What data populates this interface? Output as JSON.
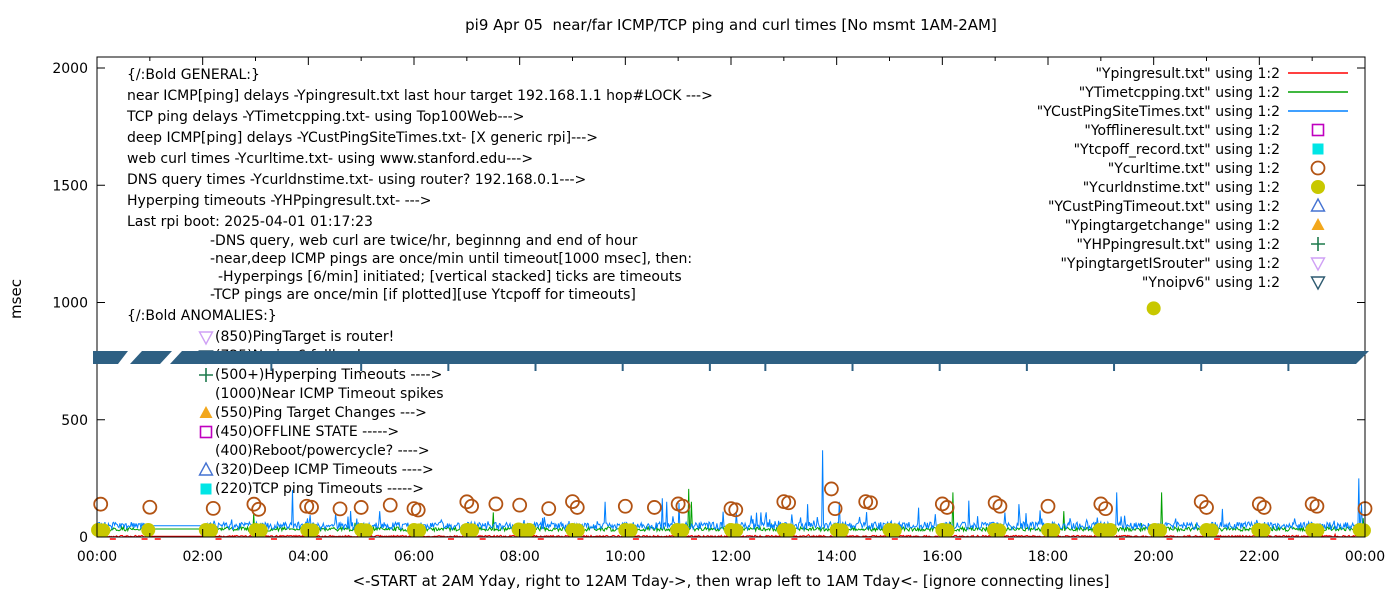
{
  "chart_data": {
    "type": "line",
    "title": "pi9 Apr 05  near/far ICMP/TCP ping and curl times [No msmt 1AM-2AM]",
    "xlabel": "<-START at 2AM Yday, right to 12AM Tday->, then wrap left to 1AM Tday<- [ignore connecting lines]",
    "ylabel": "msec",
    "ylim": [
      0,
      2000
    ],
    "yticks": [
      0,
      500,
      1000,
      1500,
      2000
    ],
    "xlim_hours": [
      0,
      24
    ],
    "minor_xtick_every_hours": 1,
    "grid": false,
    "legend_position": "top-right-inside",
    "xticks": [
      {
        "h": 0,
        "label": "00:00"
      },
      {
        "h": 2,
        "label": "02:00"
      },
      {
        "h": 4,
        "label": "04:00"
      },
      {
        "h": 6,
        "label": "06:00"
      },
      {
        "h": 8,
        "label": "08:00"
      },
      {
        "h": 10,
        "label": "10:00"
      },
      {
        "h": 12,
        "label": "12:00"
      },
      {
        "h": 14,
        "label": "14:00"
      },
      {
        "h": 16,
        "label": "16:00"
      },
      {
        "h": 18,
        "label": "18:00"
      },
      {
        "h": 20,
        "label": "20:00"
      },
      {
        "h": 22,
        "label": "22:00"
      },
      {
        "h": 24,
        "label": "00:00"
      }
    ],
    "line_series": [
      {
        "name": "Ypingresult.txt",
        "color": "#ff0000",
        "base": 3,
        "noise": 4,
        "spike_p": 0.004,
        "spike_amp": 8,
        "gap_flat": [
          1.0,
          2.08
        ],
        "spikes": []
      },
      {
        "name": "YTimetcpping.txt",
        "color": "#00a000",
        "base": 34,
        "noise": 9,
        "spike_p": 0.012,
        "spike_amp": 28,
        "gap_flat": [
          1.0,
          2.08
        ],
        "spikes": [
          [
            2.97,
            100
          ],
          [
            7.5,
            105
          ],
          [
            11.2,
            205
          ],
          [
            11.25,
            150
          ],
          [
            16.2,
            190
          ],
          [
            18.3,
            110
          ],
          [
            20.15,
            190
          ],
          [
            23.97,
            80
          ]
        ]
      },
      {
        "name": "YCustPingSiteTimes.txt",
        "color": "#0080ff",
        "base": 48,
        "noise": 16,
        "spike_p": 0.05,
        "spike_amp": 55,
        "gap_flat": [
          1.0,
          2.08
        ],
        "spikes": [
          [
            3.7,
            200
          ],
          [
            5.35,
            110
          ],
          [
            9.62,
            150
          ],
          [
            10.7,
            165
          ],
          [
            10.78,
            150
          ],
          [
            11.02,
            145
          ],
          [
            12.1,
            105
          ],
          [
            13.45,
            140
          ],
          [
            13.74,
            370
          ],
          [
            14.05,
            150
          ],
          [
            15.55,
            125
          ],
          [
            16.5,
            155
          ],
          [
            17.45,
            140
          ],
          [
            19.3,
            190
          ],
          [
            21.3,
            120
          ],
          [
            23.88,
            250
          ],
          [
            23.94,
            140
          ]
        ]
      }
    ],
    "point_series": [
      {
        "name": "Ycurltime.txt",
        "marker": "circle-open",
        "color": "#b25313",
        "points": [
          [
            0.07,
            140
          ],
          [
            1.0,
            127
          ],
          [
            2.2,
            122
          ],
          [
            2.97,
            140
          ],
          [
            3.06,
            118
          ],
          [
            3.97,
            131
          ],
          [
            4.06,
            127
          ],
          [
            4.6,
            120
          ],
          [
            5.0,
            126
          ],
          [
            5.55,
            136
          ],
          [
            6.0,
            121
          ],
          [
            6.08,
            115
          ],
          [
            7.0,
            150
          ],
          [
            7.09,
            131
          ],
          [
            7.55,
            141
          ],
          [
            8.0,
            136
          ],
          [
            8.55,
            121
          ],
          [
            9.0,
            151
          ],
          [
            9.09,
            126
          ],
          [
            10.0,
            131
          ],
          [
            10.55,
            126
          ],
          [
            11.0,
            141
          ],
          [
            11.09,
            131
          ],
          [
            12.0,
            121
          ],
          [
            12.09,
            116
          ],
          [
            13.0,
            151
          ],
          [
            13.09,
            146
          ],
          [
            13.9,
            205
          ],
          [
            13.97,
            121
          ],
          [
            14.55,
            151
          ],
          [
            14.64,
            146
          ],
          [
            16.0,
            141
          ],
          [
            16.09,
            126
          ],
          [
            17.0,
            146
          ],
          [
            17.09,
            131
          ],
          [
            18.0,
            131
          ],
          [
            19.0,
            141
          ],
          [
            19.09,
            121
          ],
          [
            20.9,
            151
          ],
          [
            21.0,
            126
          ],
          [
            22.0,
            141
          ],
          [
            22.09,
            126
          ],
          [
            23.0,
            141
          ],
          [
            23.09,
            131
          ],
          [
            24.0,
            121
          ]
        ]
      },
      {
        "name": "Ycurldnstime.txt",
        "marker": "circle-filled",
        "color": "#c8c800",
        "points": [
          [
            0.02,
            30
          ],
          [
            0.12,
            28
          ],
          [
            0.97,
            30
          ],
          [
            2.06,
            30
          ],
          [
            2.16,
            28
          ],
          [
            3.0,
            30
          ],
          [
            3.1,
            28
          ],
          [
            3.98,
            30
          ],
          [
            4.08,
            28
          ],
          [
            5.0,
            30
          ],
          [
            5.1,
            28
          ],
          [
            6.0,
            30
          ],
          [
            6.1,
            28
          ],
          [
            7.0,
            30
          ],
          [
            7.1,
            28
          ],
          [
            7.98,
            32
          ],
          [
            8.08,
            28
          ],
          [
            8.18,
            30
          ],
          [
            9.0,
            30
          ],
          [
            9.1,
            28
          ],
          [
            10.0,
            30
          ],
          [
            10.1,
            28
          ],
          [
            10.98,
            30
          ],
          [
            11.08,
            28
          ],
          [
            12.0,
            30
          ],
          [
            12.1,
            28
          ],
          [
            13.0,
            30
          ],
          [
            13.1,
            28
          ],
          [
            14.0,
            30
          ],
          [
            14.1,
            28
          ],
          [
            15.0,
            30
          ],
          [
            15.1,
            28
          ],
          [
            16.0,
            30
          ],
          [
            16.1,
            28
          ],
          [
            16.98,
            30
          ],
          [
            17.08,
            28
          ],
          [
            18.0,
            30
          ],
          [
            18.1,
            28
          ],
          [
            18.98,
            30
          ],
          [
            19.08,
            28
          ],
          [
            19.18,
            30
          ],
          [
            20.0,
            975
          ],
          [
            20.02,
            30
          ],
          [
            20.12,
            28
          ],
          [
            21.0,
            30
          ],
          [
            21.1,
            28
          ],
          [
            21.98,
            30
          ],
          [
            22.08,
            28
          ],
          [
            23.0,
            30
          ],
          [
            23.1,
            28
          ],
          [
            23.9,
            30
          ],
          [
            23.98,
            28
          ]
        ]
      },
      {
        "name": "Yofflineresult.txt",
        "marker": "square-open",
        "color": "#bf00bf",
        "points": []
      },
      {
        "name": "Ytcpoff_record.txt",
        "marker": "square-filled",
        "color": "#00e5e5",
        "points": []
      },
      {
        "name": "YCustPingTimeout.txt",
        "marker": "tri-up-open",
        "color": "#4472d2",
        "points": []
      },
      {
        "name": "Ypingtargetchange",
        "marker": "tri-up-filled",
        "color": "#f2a71c",
        "points": []
      },
      {
        "name": "YHPpingresult.txt",
        "marker": "plus",
        "color": "#1d7a4c",
        "points": []
      },
      {
        "name": "YpingtargetISrouter",
        "marker": "tri-down-open",
        "color": "#cfa0f5",
        "points": []
      },
      {
        "name": "Ynoipv6",
        "marker": "tri-down-open",
        "color": "#2e5a70",
        "points": []
      }
    ],
    "red_axis_marks_hours": [
      0.3,
      0.9,
      1.15,
      2.3,
      3.35,
      4.2,
      5.2,
      6.7,
      7.3,
      8.4,
      9.15,
      10.2,
      11.3,
      12.4,
      13.2,
      14.6,
      15.1,
      16.3,
      17.3,
      18.5,
      19.4,
      20.3,
      21.2,
      22.6,
      23.4
    ]
  },
  "legend": {
    "entries": [
      {
        "label": "\"Ypingresult.txt\" using 1:2",
        "sample": "line",
        "color": "#ff0000"
      },
      {
        "label": "\"YTimetcpping.txt\" using 1:2",
        "sample": "line",
        "color": "#00a000"
      },
      {
        "label": "\"YCustPingSiteTimes.txt\" using 1:2",
        "sample": "line",
        "color": "#0080ff"
      },
      {
        "label": "\"Yofflineresult.txt\" using 1:2",
        "sample": "square-open",
        "color": "#bf00bf"
      },
      {
        "label": "\"Ytcpoff_record.txt\" using 1:2",
        "sample": "square-filled",
        "color": "#00e5e5"
      },
      {
        "label": "\"Ycurltime.txt\" using 1:2",
        "sample": "circle-open",
        "color": "#b25313"
      },
      {
        "label": "\"Ycurldnstime.txt\" using 1:2",
        "sample": "circle-filled",
        "color": "#c8c800"
      },
      {
        "label": "\"YCustPingTimeout.txt\" using 1:2",
        "sample": "tri-up-open",
        "color": "#4472d2"
      },
      {
        "label": "\"Ypingtargetchange\" using 1:2",
        "sample": "tri-up-filled",
        "color": "#f2a71c"
      },
      {
        "label": "\"YHPpingresult.txt\" using 1:2",
        "sample": "plus",
        "color": "#1d7a4c"
      },
      {
        "label": "\"YpingtargetISrouter\" using 1:2",
        "sample": "tri-down-open",
        "color": "#cfa0f5"
      },
      {
        "label": "\"Ynoipv6\" using 1:2",
        "sample": "tri-down-open",
        "color": "#2e5a70"
      }
    ]
  },
  "annotations": {
    "general_lines": [
      "{/:Bold GENERAL:}",
      "near ICMP[ping] delays -Ypingresult.txt last hour target 192.168.1.1 hop#LOCK --->",
      "TCP ping delays -YTimetcpping.txt- using Top100Web--->",
      "deep ICMP[ping] delays -YCustPingSiteTimes.txt- [X generic rpi]--->",
      "web curl times -Ycurltime.txt- using www.stanford.edu--->",
      "DNS query times -Ycurldnstime.txt- using router? 192.168.0.1--->",
      "Hyperping timeouts -YHPpingresult.txt- --->",
      "Last rpi boot: 2025-04-01 01:17:23"
    ],
    "note_lines": [
      {
        "indent": 0,
        "text": "-DNS query, web curl are twice/hr, beginnng and end of hour"
      },
      {
        "indent": 0,
        "text": "-near,deep ICMP pings are once/min until timeout[1000 msec], then:"
      },
      {
        "indent": 1,
        "text": "-Hyperpings [6/min] initiated; [vertical stacked] ticks are timeouts"
      },
      {
        "indent": 0,
        "text": "-TCP pings are once/min [if plotted][use Ytcpoff for timeouts]"
      }
    ],
    "anomalies_header": "{/:Bold ANOMALIES:}",
    "anomalies": [
      {
        "marker": "tri-down-open",
        "color": "#cfa0f5",
        "text": "(850)PingTarget is router!",
        "covered": false
      },
      {
        "marker": "tri-down-open",
        "color": "#2e5a70",
        "text": "(725)No ipv6 fallback",
        "covered": true
      },
      {
        "marker": "plus",
        "color": "#1d7a4c",
        "text": "(500+)Hyperping Timeouts ---->",
        "covered": false
      },
      {
        "marker": "none",
        "color": "#000000",
        "text": "(1000)Near ICMP Timeout spikes",
        "covered": false
      },
      {
        "marker": "tri-up-filled",
        "color": "#f2a71c",
        "text": "(550)Ping Target Changes --->",
        "covered": false
      },
      {
        "marker": "square-open",
        "color": "#bf00bf",
        "text": "(450)OFFLINE STATE ----->",
        "covered": false
      },
      {
        "marker": "none",
        "color": "#000000",
        "text": "(400)Reboot/powercycle? ---->",
        "covered": false
      },
      {
        "marker": "tri-up-open",
        "color": "#4472d2",
        "text": "(320)Deep ICMP Timeouts ---->",
        "covered": false
      },
      {
        "marker": "square-filled",
        "color": "#00e5e5",
        "text": "(220)TCP ping Timeouts ----->",
        "covered": false
      }
    ]
  },
  "band": {
    "color": "#2e6083",
    "top_msec": 800,
    "bottom_msec": 742,
    "tick_hours": [
      3.3,
      5.0,
      6.65,
      8.3,
      9.95,
      11.6,
      12.65,
      14.3,
      15.95,
      17.6,
      19.25,
      20.9,
      22.55
    ]
  }
}
